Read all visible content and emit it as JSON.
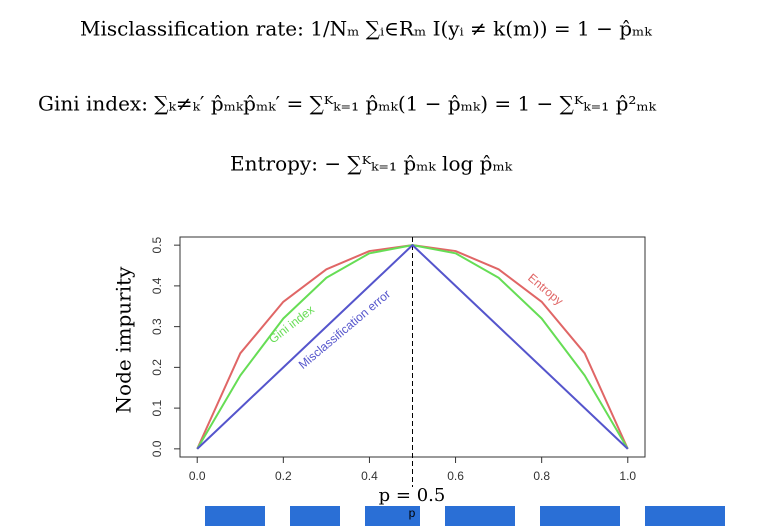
{
  "formulas": [
    "Misclassification rate: 1/Nₘ ∑ᵢ∈Rₘ I(yᵢ ≠ k(m)) = 1 − p̂ₘₖ",
    "Gini index: ∑ₖ≠ₖ′ p̂ₘₖp̂ₘₖ′ = ∑ᴷₖ₌₁ p̂ₘₖ(1 − p̂ₘₖ) = 1 − ∑ᴷₖ₌₁ p̂²ₘₖ",
    "Entropy: − ∑ᴷₖ₌₁ p̂ₘₖ log p̂ₘₖ"
  ],
  "chart_data": {
    "type": "line",
    "x_label": "p",
    "y_label": "Node impurity",
    "x": [
      0,
      0.1,
      0.2,
      0.3,
      0.4,
      0.5,
      0.6,
      0.7,
      0.8,
      0.9,
      1
    ],
    "series": [
      {
        "name": "Entropy",
        "color": "#e06666",
        "values": [
          0,
          0.2345,
          0.361,
          0.4407,
          0.4855,
          0.5,
          0.4855,
          0.4407,
          0.361,
          0.2345,
          0
        ]
      },
      {
        "name": "Gini index",
        "color": "#66dd55",
        "values": [
          0,
          0.18,
          0.32,
          0.42,
          0.48,
          0.5,
          0.48,
          0.42,
          0.32,
          0.18,
          0
        ]
      },
      {
        "name": "Misclassification error",
        "color": "#5555cc",
        "values": [
          0,
          0.1,
          0.2,
          0.3,
          0.4,
          0.5,
          0.4,
          0.3,
          0.2,
          0.1,
          0
        ]
      }
    ],
    "xlim": [
      -0.04,
      1.04
    ],
    "ylim": [
      -0.02,
      0.52
    ],
    "xticks": [
      {
        "value": 0,
        "label": "0.0"
      },
      0.2,
      0.4,
      0.6,
      0.8,
      {
        "value": 1,
        "label": "1.0"
      }
    ],
    "yticks": [
      {
        "value": 0,
        "label": "0.0"
      },
      0.1,
      0.2,
      0.3,
      0.4,
      0.5
    ],
    "vline": 0.5,
    "annotation": "p = 0.5"
  }
}
